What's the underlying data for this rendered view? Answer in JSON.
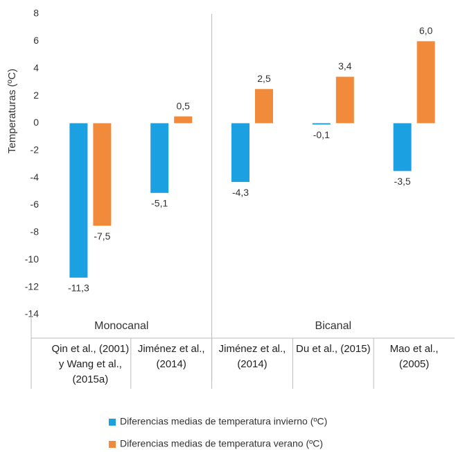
{
  "chart_data": {
    "type": "bar",
    "y_label": "Temperaturas (ºC)",
    "groups": [
      {
        "name": "Monocanal",
        "categories": [
          "Qin et al., (2001) y Wang et al., (2015a)",
          "Jiménez et al., (2014)"
        ]
      },
      {
        "name": "Bicanal",
        "categories": [
          "Jiménez et al., (2014)",
          "Du et al., (2015)",
          "Mao et al., (2005)"
        ]
      }
    ],
    "series": [
      {
        "name": "Diferencias medias de temperatura invierno (ºC)",
        "color": "#1ba1e2",
        "values": [
          -11.3,
          -5.1,
          -4.3,
          -0.1,
          -3.5
        ],
        "value_labels": [
          "-11,3",
          "-5,1",
          "-4,3",
          "-0,1",
          "-3,5"
        ]
      },
      {
        "name": "Diferencias medias de temperatura verano (ºC)",
        "color": "#f28a3c",
        "values": [
          -7.5,
          0.5,
          2.5,
          3.4,
          6.0
        ],
        "value_labels": [
          "-7,5",
          "0,5",
          "2,5",
          "3,4",
          "6,0"
        ]
      }
    ],
    "ylim": [
      -14,
      8
    ],
    "yticks": [
      -14,
      -12,
      -10,
      -8,
      -6,
      -4,
      -2,
      0,
      2,
      4,
      6,
      8
    ],
    "grid": false
  }
}
